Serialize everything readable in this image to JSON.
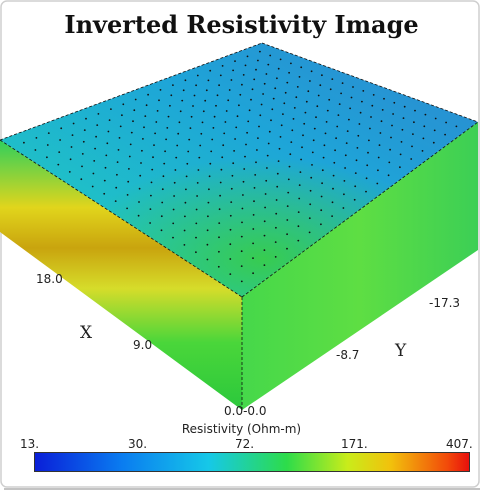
{
  "title": "Inverted Resistivity Image",
  "axes": {
    "x_name": "X",
    "y_name": "Y",
    "x_ticks": [
      "18.0",
      "9.0"
    ],
    "y_ticks": [
      "-17.3",
      "-8.7"
    ],
    "origin_label": "0.0-0.0"
  },
  "colorbar": {
    "title": "Resistivity (Ohm-m)",
    "ticks": [
      "13.",
      "30.",
      "72.",
      "171.",
      "407."
    ],
    "colors": [
      "#0a1fd8",
      "#16c8e8",
      "#2ddc4a",
      "#f2c10c",
      "#e8100c"
    ]
  }
}
